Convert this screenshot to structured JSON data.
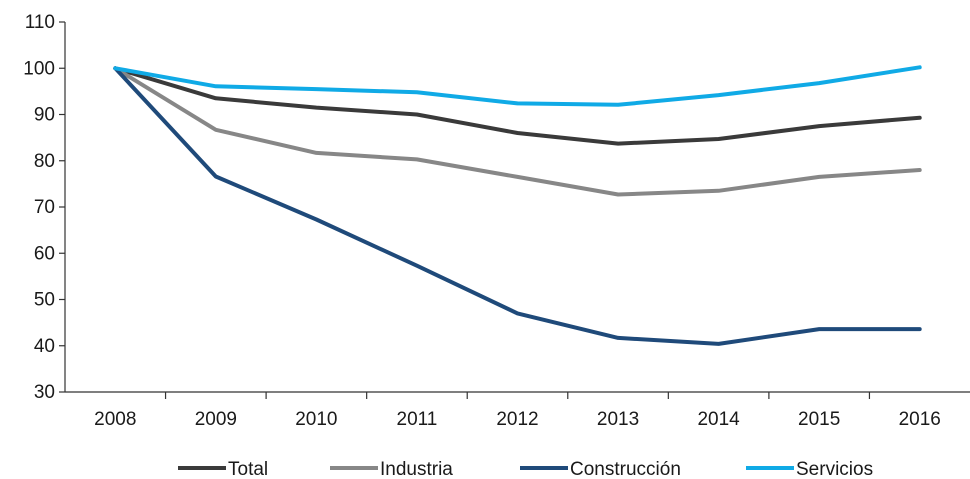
{
  "chart_data": {
    "type": "line",
    "title": "",
    "xlabel": "",
    "ylabel": "",
    "categories": [
      "2008",
      "2009",
      "2010",
      "2011",
      "2012",
      "2013",
      "2014",
      "2015",
      "2016"
    ],
    "ylim": [
      30,
      110
    ],
    "yticks": [
      30,
      40,
      50,
      60,
      70,
      80,
      90,
      100,
      110
    ],
    "grid": false,
    "legend_position": "bottom",
    "series": [
      {
        "name": "Total",
        "color": "#3a3a3a",
        "values": [
          100,
          93.5,
          91.5,
          90.0,
          86.0,
          83.7,
          84.7,
          87.5,
          89.3
        ]
      },
      {
        "name": "Industria",
        "color": "#878787",
        "values": [
          100,
          86.7,
          81.7,
          80.3,
          76.5,
          72.7,
          73.5,
          76.5,
          78.0
        ]
      },
      {
        "name": "Construcción",
        "color": "#1f4a7a",
        "values": [
          100,
          76.6,
          67.3,
          57.3,
          47.0,
          41.7,
          40.4,
          43.6,
          43.6
        ]
      },
      {
        "name": "Servicios",
        "color": "#10aae6",
        "values": [
          100,
          96.1,
          95.5,
          94.8,
          92.4,
          92.1,
          94.2,
          96.8,
          100.2
        ]
      }
    ]
  }
}
